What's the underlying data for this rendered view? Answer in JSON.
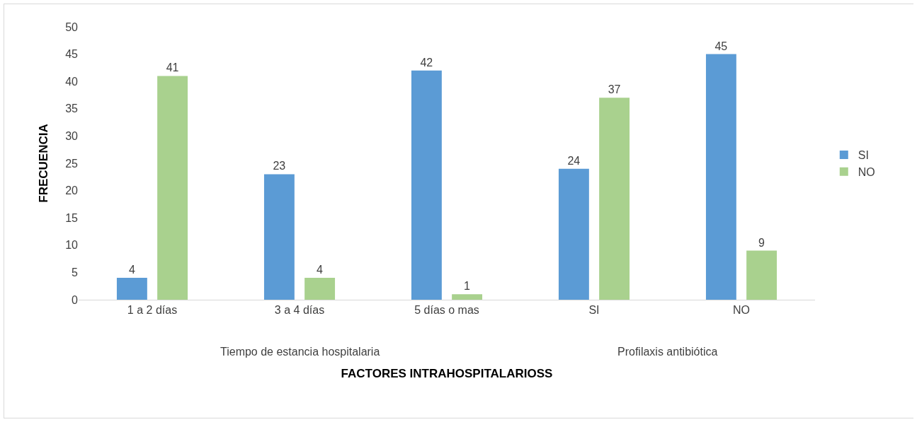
{
  "chart_data": {
    "type": "bar",
    "xlabel": "FACTORES INTRAHOSPITALARIOSS",
    "ylabel": "FRECUENCIA",
    "categories": [
      "1 a 2 días",
      "3 a 4 días",
      "5 días o mas",
      "SI",
      "NO"
    ],
    "series": [
      {
        "name": "SI",
        "color": "#5b9bd5",
        "values": [
          4,
          23,
          42,
          24,
          45
        ]
      },
      {
        "name": "NO",
        "color": "#a9d18e",
        "values": [
          41,
          4,
          1,
          37,
          9
        ]
      }
    ],
    "ylim": [
      0,
      50
    ],
    "yticks": [
      0,
      5,
      10,
      15,
      20,
      25,
      30,
      35,
      40,
      45,
      50
    ],
    "grid": false,
    "legend": "right",
    "data_labels": true,
    "annotations": [
      "Tiempo de estancia hospitalaria",
      "Profilaxis antibiótica"
    ]
  }
}
